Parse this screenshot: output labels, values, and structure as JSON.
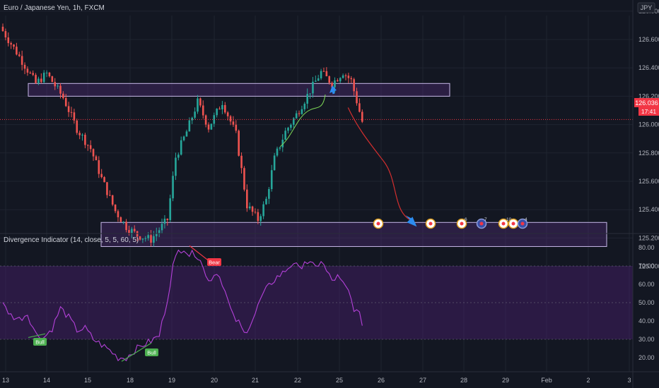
{
  "symbol": {
    "title": "Euro / Japanese Yen, 1h, FXCM",
    "currency": "JPY",
    "last_price": "126.036",
    "countdown": "17:41"
  },
  "indicator": {
    "title": "Divergence Indicator (14, close, 5, 5, 60, 5)",
    "bull_label": "Bull",
    "bear_label": "Bear"
  },
  "event_markers": [
    "6",
    "7",
    "10",
    "4"
  ],
  "colors": {
    "background": "#131722",
    "up_candle": "#26a69a",
    "down_candle": "#ef5350",
    "zone_border": "#c7b8e8",
    "zone_fill": "#5a2d82",
    "oscillator": "#b441d9",
    "price_tag": "#f23645"
  },
  "chart_data": [
    {
      "type": "candlestick",
      "x_ticks": [
        "13",
        "14",
        "15",
        "18",
        "19",
        "20",
        "21",
        "22",
        "25",
        "26",
        "27",
        "28",
        "29",
        "Feb",
        "2",
        "3"
      ],
      "y_ticks": [
        "125.000",
        "125.200",
        "125.400",
        "125.600",
        "125.800",
        "126.000",
        "126.200",
        "126.400",
        "126.600",
        "126.800"
      ],
      "ylim": [
        124.95,
        126.9
      ],
      "last_value": 126.036,
      "resistance_zone": [
        126.2,
        126.29
      ],
      "support_zone": [
        125.14,
        125.31
      ],
      "close_path": [
        [
          0,
          126.66
        ],
        [
          6,
          126.48
        ],
        [
          12,
          126.29
        ],
        [
          16,
          126.36
        ],
        [
          22,
          126.19
        ],
        [
          27,
          125.97
        ],
        [
          32,
          125.83
        ],
        [
          36,
          125.62
        ],
        [
          41,
          125.39
        ],
        [
          45,
          125.28
        ],
        [
          49,
          125.22
        ],
        [
          54,
          125.19
        ],
        [
          60,
          125.33
        ],
        [
          63,
          125.77
        ],
        [
          67,
          125.95
        ],
        [
          71,
          126.16
        ],
        [
          75,
          125.98
        ],
        [
          80,
          126.16
        ],
        [
          85,
          125.93
        ],
        [
          89,
          125.43
        ],
        [
          93,
          125.33
        ],
        [
          96,
          125.47
        ],
        [
          99,
          125.76
        ],
        [
          103,
          125.95
        ],
        [
          107,
          126.07
        ],
        [
          112,
          126.24
        ],
        [
          116,
          126.37
        ],
        [
          120,
          126.29
        ],
        [
          124,
          126.37
        ],
        [
          127,
          126.31
        ],
        [
          131,
          126.02
        ]
      ],
      "projection": {
        "x": [
          131,
          144,
          155
        ],
        "y": [
          126.12,
          125.84,
          125.3
        ]
      }
    },
    {
      "type": "line",
      "name": "",
      "x_ticks": [
        "13",
        "14",
        "15",
        "18",
        "19",
        "20",
        "21",
        "22",
        "25",
        "26",
        "27",
        "28",
        "29",
        "Feb",
        "2",
        "3"
      ],
      "y_ticks": [
        "20.00",
        "30.00",
        "40.00",
        "50.00",
        "60.00",
        "70.00",
        "80.00"
      ],
      "ylim": [
        13,
        87
      ],
      "band": [
        30,
        70
      ],
      "midline": 50,
      "values": [
        [
          0,
          49
        ],
        [
          3,
          43
        ],
        [
          6,
          41
        ],
        [
          9,
          44
        ],
        [
          12,
          33
        ],
        [
          15,
          31
        ],
        [
          18,
          36
        ],
        [
          21,
          47
        ],
        [
          24,
          42
        ],
        [
          27,
          35
        ],
        [
          30,
          36
        ],
        [
          33,
          30
        ],
        [
          36,
          27
        ],
        [
          39,
          24
        ],
        [
          42,
          20
        ],
        [
          45,
          20
        ],
        [
          48,
          24
        ],
        [
          51,
          27
        ],
        [
          54,
          29
        ],
        [
          57,
          32
        ],
        [
          60,
          52
        ],
        [
          62,
          70
        ],
        [
          64,
          78
        ],
        [
          66,
          80
        ],
        [
          68,
          76
        ],
        [
          70,
          77
        ],
        [
          72,
          74
        ],
        [
          74,
          64
        ],
        [
          76,
          63
        ],
        [
          78,
          67
        ],
        [
          80,
          61
        ],
        [
          82,
          51
        ],
        [
          84,
          42
        ],
        [
          86,
          39
        ],
        [
          88,
          33
        ],
        [
          90,
          38
        ],
        [
          92,
          44
        ],
        [
          94,
          52
        ],
        [
          96,
          57
        ],
        [
          98,
          61
        ],
        [
          100,
          64
        ],
        [
          102,
          66
        ],
        [
          104,
          69
        ],
        [
          106,
          72
        ],
        [
          108,
          68
        ],
        [
          110,
          73
        ],
        [
          112,
          71
        ],
        [
          114,
          69
        ],
        [
          116,
          73
        ],
        [
          118,
          67
        ],
        [
          120,
          62
        ],
        [
          122,
          64
        ],
        [
          124,
          60
        ],
        [
          126,
          56
        ],
        [
          128,
          47
        ],
        [
          130,
          43
        ],
        [
          131,
          39
        ]
      ]
    }
  ]
}
